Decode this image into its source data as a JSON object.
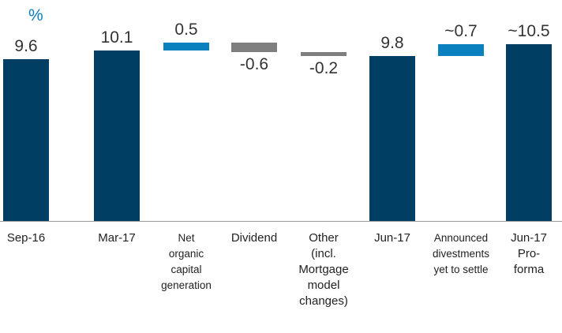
{
  "chart_data": {
    "type": "waterfall",
    "ylabel": "%",
    "categories": [
      "Sep-16",
      "Mar-17",
      "Net\norganic\ncapital\ngeneration",
      "Dividend",
      "Other\n(incl.\nMortgage\nmodel\nchanges)",
      "Jun-17",
      "Announced\ndivestments\nyet to settle",
      "Jun-17\nPro-\nforma"
    ],
    "values": [
      9.6,
      10.1,
      0.5,
      -0.6,
      -0.2,
      9.8,
      0.7,
      10.5
    ],
    "value_labels": [
      "9.6",
      "10.1",
      "0.5",
      "-0.6",
      "-0.2",
      "9.8",
      "~0.7",
      "~10.5"
    ],
    "measures": [
      "total",
      "total",
      "relative",
      "relative",
      "relative",
      "total",
      "relative",
      "total"
    ],
    "colors": [
      "#003f63",
      "#003f63",
      "#0a80bf",
      "#7f7f7f",
      "#7f7f7f",
      "#003f63",
      "#0a80bf",
      "#003f63"
    ],
    "ylim": [
      0,
      11
    ]
  }
}
